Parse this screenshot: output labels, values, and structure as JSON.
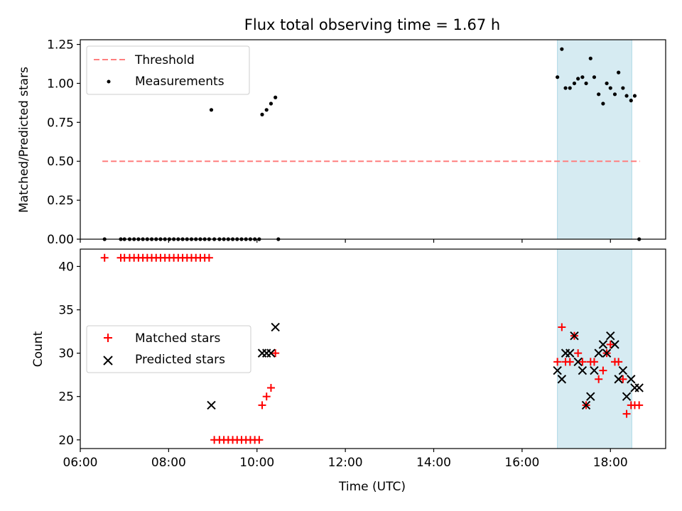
{
  "title": "Flux total observing time = 1.67 h",
  "colors": {
    "threshold": "#ff7f7f",
    "measurement": "#000000",
    "matched": "#ff0000",
    "predicted": "#000000",
    "span": "#add8e6"
  },
  "chart_data": [
    {
      "type": "scatter",
      "ylabel": "Matched/Predicted stars",
      "ylim": [
        0,
        1.28
      ],
      "yticks": [
        0,
        0.25,
        0.5,
        0.75,
        1.0,
        1.25
      ],
      "ytick_labels": [
        "0.00",
        "0.25",
        "0.50",
        "0.75",
        "1.00",
        "1.25"
      ],
      "xlim": [
        "06:00",
        "19:15"
      ],
      "shaded_span": [
        "16:48",
        "18:29"
      ],
      "legend": {
        "placement": "upper-left",
        "entries": [
          {
            "label": "Threshold",
            "series": "threshold"
          },
          {
            "label": "Measurements",
            "series": "measurements"
          }
        ]
      },
      "threshold": {
        "y": 0.5,
        "x": [
          "06:30",
          "18:40"
        ]
      },
      "measurements": {
        "x": [
          "06:33",
          "06:55",
          "07:00",
          "07:07",
          "07:13",
          "07:19",
          "07:25",
          "07:31",
          "07:37",
          "07:43",
          "07:49",
          "07:55",
          "08:01",
          "08:07",
          "08:13",
          "08:19",
          "08:25",
          "08:31",
          "08:37",
          "08:43",
          "08:49",
          "08:55",
          "08:58",
          "09:02",
          "09:09",
          "09:15",
          "09:21",
          "09:27",
          "09:33",
          "09:39",
          "09:45",
          "09:51",
          "09:57",
          "10:03",
          "10:07",
          "10:13",
          "10:19",
          "10:25",
          "10:29",
          "16:48",
          "16:54",
          "16:59",
          "17:05",
          "17:11",
          "17:16",
          "17:22",
          "17:27",
          "17:33",
          "17:38",
          "17:44",
          "17:50",
          "17:55",
          "18:00",
          "18:06",
          "18:11",
          "18:17",
          "18:22",
          "18:28",
          "18:33",
          "18:39"
        ],
        "y": [
          0,
          0,
          0,
          0,
          0,
          0,
          0,
          0,
          0,
          0,
          0,
          0,
          0,
          0,
          0,
          0,
          0,
          0,
          0,
          0,
          0,
          0,
          0.83,
          0,
          0,
          0,
          0,
          0,
          0,
          0,
          0,
          0,
          0,
          0,
          0.8,
          0.83,
          0.87,
          0.91,
          0,
          1.04,
          1.22,
          0.97,
          0.97,
          1.0,
          1.03,
          1.04,
          1.0,
          1.16,
          1.04,
          0.93,
          0.87,
          1.0,
          0.97,
          0.93,
          1.07,
          0.97,
          0.92,
          0.89,
          0.92,
          0
        ]
      }
    },
    {
      "type": "scatter",
      "xlabel": "Time (UTC)",
      "ylabel": "Count",
      "ylim": [
        19.0,
        42.0
      ],
      "yticks": [
        20,
        25,
        30,
        35,
        40
      ],
      "ytick_labels": [
        "20",
        "25",
        "30",
        "35",
        "40"
      ],
      "xlim": [
        "06:00",
        "19:15"
      ],
      "xticks": [
        "06:00",
        "08:00",
        "10:00",
        "12:00",
        "14:00",
        "16:00",
        "18:00"
      ],
      "shaded_span": [
        "16:48",
        "18:29"
      ],
      "legend": {
        "placement": "center-left",
        "entries": [
          {
            "label": "Matched stars",
            "series": "matched"
          },
          {
            "label": "Predicted stars",
            "series": "predicted"
          }
        ]
      },
      "series": [
        {
          "name": "Matched stars",
          "marker": "plus",
          "x": [
            "06:33",
            "06:55",
            "07:00",
            "07:07",
            "07:13",
            "07:19",
            "07:25",
            "07:31",
            "07:37",
            "07:43",
            "07:49",
            "07:55",
            "08:01",
            "08:07",
            "08:13",
            "08:19",
            "08:25",
            "08:31",
            "08:37",
            "08:43",
            "08:49",
            "08:55",
            "09:02",
            "09:09",
            "09:15",
            "09:21",
            "09:27",
            "09:33",
            "09:39",
            "09:45",
            "09:51",
            "09:57",
            "10:03",
            "10:07",
            "10:13",
            "10:19",
            "10:25",
            "16:48",
            "16:54",
            "16:59",
            "17:05",
            "17:11",
            "17:16",
            "17:22",
            "17:27",
            "17:33",
            "17:38",
            "17:44",
            "17:50",
            "17:55",
            "18:00",
            "18:06",
            "18:11",
            "18:17",
            "18:22",
            "18:28",
            "18:33",
            "18:39"
          ],
          "y": [
            41,
            41,
            41,
            41,
            41,
            41,
            41,
            41,
            41,
            41,
            41,
            41,
            41,
            41,
            41,
            41,
            41,
            41,
            41,
            41,
            41,
            41,
            20,
            20,
            20,
            20,
            20,
            20,
            20,
            20,
            20,
            20,
            20,
            24,
            25,
            26,
            30,
            29,
            33,
            29,
            29,
            32,
            30,
            29,
            24,
            29,
            29,
            27,
            28,
            30,
            31,
            29,
            29,
            27,
            23,
            24,
            24,
            24
          ]
        },
        {
          "name": "Predicted stars",
          "marker": "x",
          "x": [
            "08:58",
            "10:07",
            "10:13",
            "10:19",
            "10:25",
            "16:48",
            "16:54",
            "16:59",
            "17:05",
            "17:11",
            "17:16",
            "17:22",
            "17:27",
            "17:33",
            "17:38",
            "17:44",
            "17:50",
            "17:55",
            "18:00",
            "18:06",
            "18:11",
            "18:17",
            "18:22",
            "18:28",
            "18:33",
            "18:39"
          ],
          "y": [
            24,
            30,
            30,
            30,
            33,
            28,
            27,
            30,
            30,
            32,
            29,
            28,
            24,
            25,
            28,
            30,
            31,
            30,
            32,
            31,
            27,
            28,
            25,
            27,
            26,
            26
          ]
        }
      ]
    }
  ]
}
